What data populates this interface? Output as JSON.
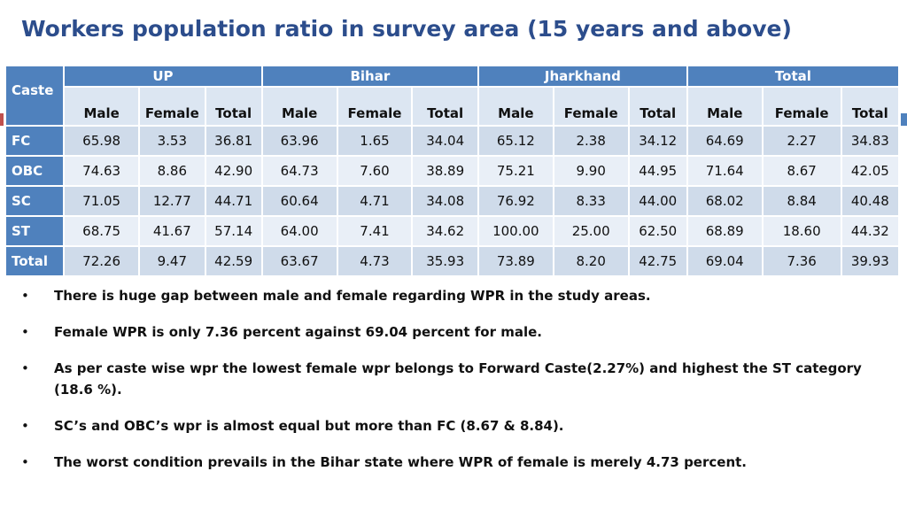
{
  "title": "Workers population ratio in survey area (15 years and above)",
  "table": {
    "caste_header": "Caste",
    "groups": [
      "UP",
      "Bihar",
      "Jharkhand",
      "Total"
    ],
    "subheaders": [
      "Male",
      "Female",
      "Total"
    ],
    "rows": [
      {
        "caste": "FC",
        "values": [
          "65.98",
          "3.53",
          "36.81",
          "63.96",
          "1.65",
          "34.04",
          "65.12",
          "2.38",
          "34.12",
          "64.69",
          "2.27",
          "34.83"
        ]
      },
      {
        "caste": "OBC",
        "values": [
          "74.63",
          "8.86",
          "42.90",
          "64.73",
          "7.60",
          "38.89",
          "75.21",
          "9.90",
          "44.95",
          "71.64",
          "8.67",
          "42.05"
        ]
      },
      {
        "caste": "SC",
        "values": [
          "71.05",
          "12.77",
          "44.71",
          "60.64",
          "4.71",
          "34.08",
          "76.92",
          "8.33",
          "44.00",
          "68.02",
          "8.84",
          "40.48"
        ]
      },
      {
        "caste": "ST",
        "values": [
          "68.75",
          "41.67",
          "57.14",
          "64.00",
          "7.41",
          "34.62",
          "100.00",
          "25.00",
          "62.50",
          "68.89",
          "18.60",
          "44.32"
        ]
      },
      {
        "caste": "Total",
        "values": [
          "72.26",
          "9.47",
          "42.59",
          "63.67",
          "4.73",
          "35.93",
          "73.89",
          "8.20",
          "42.75",
          "69.04",
          "7.36",
          "39.93"
        ]
      }
    ]
  },
  "bullet_symbol": "•",
  "bullets": [
    "There is huge gap between male and female regarding WPR in the study areas.",
    "Female WPR is only 7.36 percent against 69.04 percent for male.",
    "As per caste wise wpr the lowest female wpr belongs to Forward Caste(2.27%) and highest the ST category (18.6 %).",
    "SC’s and OBC’s wpr is almost equal but more than FC (8.67 & 8.84).",
    "The worst condition prevails in the Bihar state where WPR of female is merely 4.73 percent."
  ]
}
